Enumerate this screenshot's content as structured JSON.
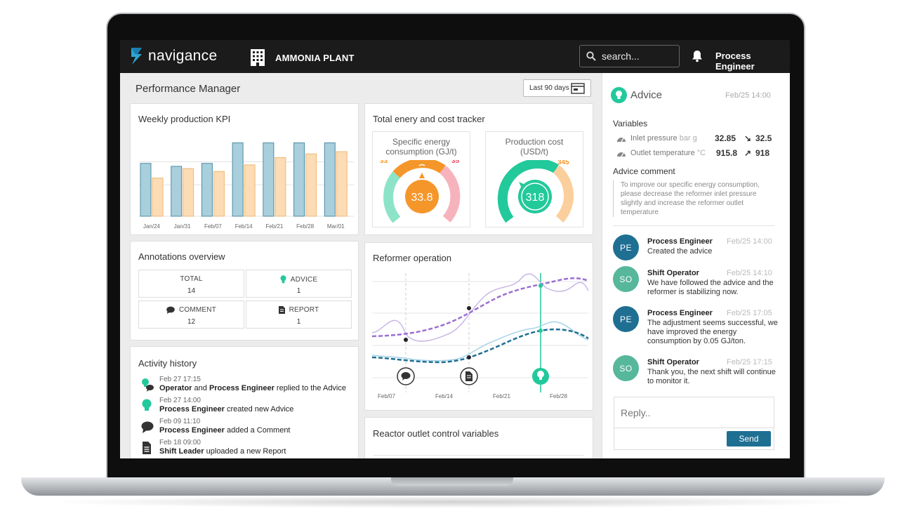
{
  "app": {
    "brand": "navigance",
    "plant_name": "AMMONIA PLANT",
    "user_role": "Process Engineer",
    "search_placeholder": "search..."
  },
  "page": {
    "title": "Performance Manager",
    "date_range": "Last 90 days"
  },
  "weekly_kpi": {
    "title": "Weekly production KPI",
    "chart_data": {
      "type": "bar",
      "categories": [
        "Jan/24",
        "Jan/31",
        "Feb/07",
        "Feb/14",
        "Feb/21",
        "Feb/28",
        "Mar/01"
      ],
      "series": [
        {
          "values": [
            72,
            68,
            72,
            100,
            100,
            100,
            100
          ]
        },
        {
          "values": [
            52,
            65,
            61,
            70,
            80,
            85,
            88
          ]
        }
      ],
      "colors": [
        "#a9cfdc",
        "#fbdcb4"
      ],
      "edge_colors": [
        "#4d8ca3",
        "#f0b877"
      ],
      "ylim": [
        0,
        110
      ],
      "grid": true
    }
  },
  "tracker": {
    "title": "Total enery and cost tracker",
    "energy": {
      "label_line1": "Specific energy",
      "label_line2": "consumption (GJ/t)",
      "value": "33.8",
      "min_label": "33",
      "max_label": "35",
      "color": "#f5962b"
    },
    "cost": {
      "label_line1": "Production cost",
      "label_line2": "(USD/t)",
      "value": "318",
      "max_label": "345",
      "color": "#22c99b"
    }
  },
  "annotations": {
    "title": "Annotations overview",
    "total_label": "TOTAL",
    "total_value": "14",
    "advice_label": "ADVICE",
    "advice_value": "1",
    "comment_label": "COMMENT",
    "comment_value": "12",
    "report_label": "REPORT",
    "report_value": "1"
  },
  "activity": {
    "title": "Activity history",
    "items": [
      {
        "date": "Feb 27 17:15",
        "actor1": "Operator",
        "join": " and ",
        "actor2": "Process Engineer",
        "action": " replied to the Advice"
      },
      {
        "date": "Feb 27 14:00",
        "actor1": "Process Engineer",
        "action": " created new Advice"
      },
      {
        "date": "Feb 09 11:10",
        "actor1": "Process Engineer",
        "action": " added a Comment"
      },
      {
        "date": "Feb 18 09:00",
        "actor1": "Shift Leader",
        "action": " uploaded a new Report"
      }
    ]
  },
  "reformer": {
    "title": "Reformer operation",
    "chart_data": {
      "type": "line",
      "x_ticks": [
        "Feb/07",
        "Feb/14",
        "Feb/21",
        "Feb/28"
      ],
      "grid": true
    }
  },
  "reactor": {
    "title": "Reactor outlet control variables"
  },
  "advice": {
    "title": "Advice",
    "time": "Feb/25 14:00",
    "variables_heading": "Variables",
    "variables": [
      {
        "name": "Inlet pressure",
        "unit": "bar g",
        "from": "32.85",
        "arrow": "↘",
        "to": "32.5"
      },
      {
        "name": "Outlet temperature",
        "unit": "°C",
        "from": "915.8",
        "arrow": "↗",
        "to": "918"
      }
    ],
    "comment_heading": "Advice comment",
    "comment": "To improve our specific energy consumption, please decrease the reformer inlet pressure slightly and increase the reformer outlet temperature",
    "messages": [
      {
        "initials": "PE",
        "author": "Process Engineer",
        "time": "Feb/25 14:00",
        "text": "Created the advice",
        "color": "#1f6f93"
      },
      {
        "initials": "SO",
        "author": "Shift Operator",
        "time": "Feb/25 14:10",
        "text": "We have followed the advice and the reformer is stabilizing now.",
        "color": "#57b79a"
      },
      {
        "initials": "PE",
        "author": "Process Engineer",
        "time": "Feb/25 17:05",
        "text": "The adjustment seems successful, we have improved the energy consumption by 0.05 GJ/ton.",
        "color": "#1f6f93"
      },
      {
        "initials": "SO",
        "author": "Shift Operator",
        "time": "Feb/25 17:15",
        "text": "Thank you, the next shift will continue to monitor it.",
        "color": "#57b79a"
      }
    ],
    "reply_placeholder": "Reply..",
    "send_label": "Send"
  }
}
